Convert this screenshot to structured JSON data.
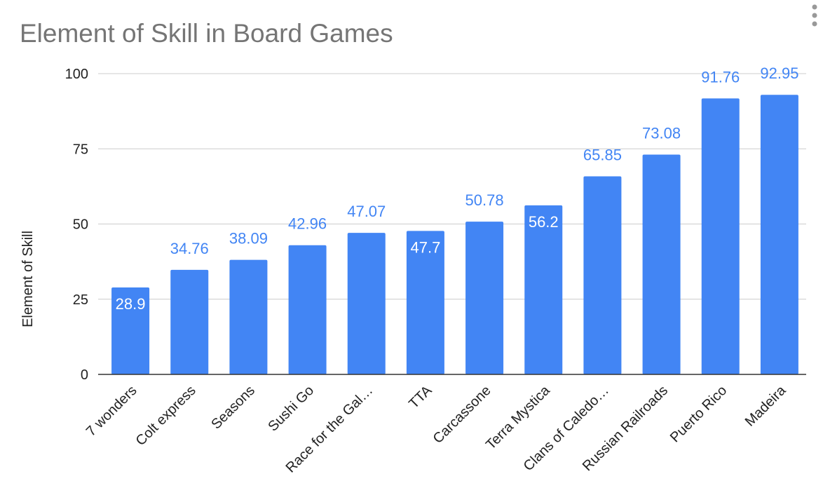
{
  "chart_data": {
    "type": "bar",
    "title": "Element of Skill in Board Games",
    "xlabel": "",
    "ylabel": "Element of Skill",
    "categories": [
      "7 wonders",
      "Colt express",
      "Seasons",
      "Sushi Go",
      "Race for the Gal…",
      "TTA",
      "Carcassone",
      "Terra Mystica",
      "Clans of Caledo…",
      "Russian Railroads",
      "Puerto Rico",
      "Madeira"
    ],
    "series": [
      {
        "values": [
          28.9,
          34.76,
          38.09,
          42.96,
          47.07,
          47.7,
          50.78,
          56.2,
          65.85,
          73.08,
          91.76,
          92.95
        ],
        "labels": [
          "28.9",
          "34.76",
          "38.09",
          "42.96",
          "47.07",
          "47.7",
          "50.78",
          "56.2",
          "65.85",
          "73.08",
          "91.76",
          "92.95"
        ],
        "label_inside": [
          true,
          false,
          false,
          false,
          false,
          true,
          false,
          true,
          false,
          false,
          false,
          false
        ]
      }
    ],
    "ylim": [
      0,
      100
    ],
    "yticks": [
      0,
      25,
      50,
      75,
      100
    ],
    "ytick_labels": [
      "0",
      "25",
      "50",
      "75",
      "100"
    ],
    "grid": true,
    "legend": "none",
    "colors": {
      "bar": "#4285f4",
      "label_outside": "#4285f4",
      "label_inside": "#ffffff",
      "title": "#757575"
    },
    "menu_icon": "vertical-dots-icon"
  }
}
